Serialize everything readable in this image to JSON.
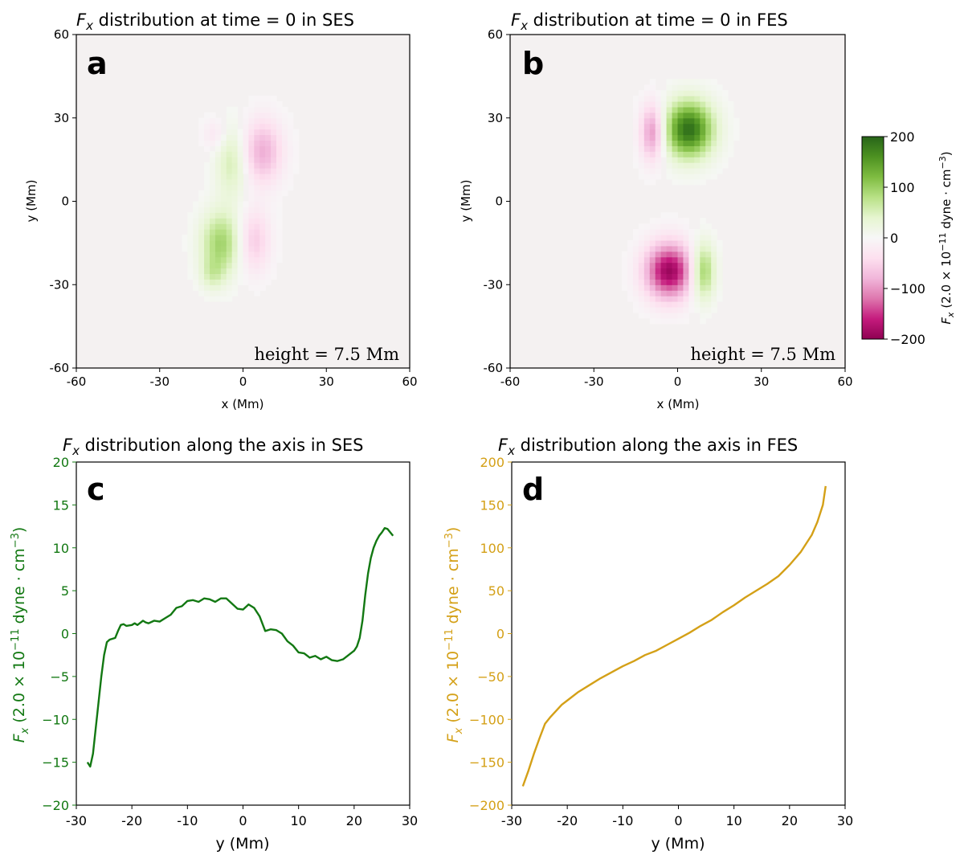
{
  "colors": {
    "green_curve": "#127812",
    "gold_curve": "#d4a017",
    "cmap_neg": "#c51b7d",
    "cmap_mid": "#f7f7f7",
    "cmap_pos": "#276419",
    "bg_field": "#f4f1f1"
  },
  "colorbar": {
    "label": "F_x (2.0 × 10^−11 dyne · cm^−3)",
    "label_math": {
      "F": "F",
      "x": "x",
      "prefix": " (2.0 × 10",
      "exp1": "−11",
      "mid": " dyne · cm",
      "exp2": "−3",
      "suffix": ")"
    },
    "ticks": [
      "200",
      "100",
      "0",
      "−100",
      "−200"
    ],
    "tick_values": [
      200,
      100,
      0,
      -100,
      -200
    ],
    "vmin": -200,
    "vmax": 200
  },
  "chart_data": [
    {
      "panel": "a",
      "type": "heatmap",
      "title_prefix": "F",
      "title_sub": "x",
      "title_rest": " distribution at time = 0 in SES",
      "xlabel": "x (Mm)",
      "ylabel": "y (Mm)",
      "xlim": [
        -60,
        60
      ],
      "ylim": [
        -60,
        60
      ],
      "xticks": [
        "-60",
        "-30",
        "0",
        "30",
        "60"
      ],
      "yticks": [
        "60",
        "30",
        "0",
        "-30",
        "-60"
      ],
      "annotation": "height = 7.5 Mm",
      "blobs": [
        {
          "x": -4,
          "y": 14,
          "sx": 4,
          "sy": 9,
          "value": 55
        },
        {
          "x": 7,
          "y": 18,
          "sx": 5,
          "sy": 8,
          "value": -85
        },
        {
          "x": -10,
          "y": 24,
          "sx": 3,
          "sy": 4,
          "value": -30
        },
        {
          "x": -8,
          "y": -15,
          "sx": 5,
          "sy": 8,
          "value": 95
        },
        {
          "x": 4,
          "y": -14,
          "sx": 4,
          "sy": 8,
          "value": -60
        },
        {
          "x": -11,
          "y": -26,
          "sx": 3,
          "sy": 4,
          "value": 40
        }
      ]
    },
    {
      "panel": "b",
      "type": "heatmap",
      "title_prefix": "F",
      "title_sub": "x",
      "title_rest": " distribution at time = 0 in FES",
      "xlabel": "x (Mm)",
      "ylabel": "y (Mm)",
      "xlim": [
        -60,
        60
      ],
      "ylim": [
        -60,
        60
      ],
      "xticks": [
        "-60",
        "-30",
        "0",
        "30",
        "60"
      ],
      "yticks": [
        "60",
        "30",
        "0",
        "-30",
        "-60"
      ],
      "annotation": "height = 7.5 Mm",
      "blobs": [
        {
          "x": 4,
          "y": 26,
          "sx": 6,
          "sy": 7,
          "value": 190
        },
        {
          "x": -9,
          "y": 25,
          "sx": 3,
          "sy": 7,
          "value": -110
        },
        {
          "x": -3,
          "y": -25,
          "sx": 6,
          "sy": 7,
          "value": -190
        },
        {
          "x": 9,
          "y": -25,
          "sx": 3,
          "sy": 7,
          "value": 110
        }
      ]
    },
    {
      "panel": "c",
      "type": "line",
      "title_prefix": "F",
      "title_sub": "x",
      "title_rest": " distribution along the axis in SES",
      "xlabel": "y (Mm)",
      "ylabel": "F_x (2.0 × 10^−11 dyne · cm^−3)",
      "xlim": [
        -30,
        30
      ],
      "ylim": [
        -20,
        20
      ],
      "xticks": [
        "-30",
        "-20",
        "-10",
        "0",
        "10",
        "20",
        "30"
      ],
      "xtick_values": [
        -30,
        -20,
        -10,
        0,
        10,
        20,
        30
      ],
      "yticks": [
        "20",
        "15",
        "10",
        "5",
        "0",
        "−5",
        "−10",
        "−15",
        "−20"
      ],
      "ytick_values": [
        20,
        15,
        10,
        5,
        0,
        -5,
        -10,
        -15,
        -20
      ],
      "series": [
        {
          "name": "SES",
          "x": [
            -28,
            -27.5,
            -27,
            -26.5,
            -26,
            -25.5,
            -25,
            -24.5,
            -24,
            -23,
            -22.5,
            -22,
            -21.5,
            -21,
            -20,
            -19.5,
            -19,
            -18,
            -17.5,
            -17,
            -16,
            -15,
            -14,
            -13,
            -12,
            -11,
            -10,
            -9,
            -8,
            -7,
            -6,
            -5,
            -4,
            -3,
            -2,
            -1,
            0,
            1,
            2,
            3,
            4,
            5,
            6,
            7,
            8,
            9,
            10,
            11,
            12,
            13,
            14,
            15,
            16,
            17,
            18,
            19,
            20,
            20.5,
            21,
            21.5,
            22,
            22.5,
            23,
            23.5,
            24,
            24.5,
            25,
            25.5,
            26,
            26.5,
            27
          ],
          "y": [
            -15,
            -15.5,
            -14,
            -11,
            -8,
            -5,
            -2.5,
            -1,
            -0.7,
            -0.5,
            0.3,
            1.0,
            1.1,
            0.9,
            1.0,
            1.2,
            1.0,
            1.5,
            1.3,
            1.2,
            1.5,
            1.4,
            1.8,
            2.2,
            3.0,
            3.2,
            3.8,
            3.9,
            3.7,
            4.1,
            4.0,
            3.7,
            4.1,
            4.1,
            3.5,
            2.9,
            2.8,
            3.4,
            3.0,
            2.0,
            0.3,
            0.5,
            0.4,
            0.0,
            -0.9,
            -1.4,
            -2.2,
            -2.3,
            -2.8,
            -2.6,
            -3.0,
            -2.7,
            -3.1,
            -3.2,
            -3.0,
            -2.5,
            -2.0,
            -1.5,
            -0.5,
            1.5,
            4.5,
            7.0,
            8.8,
            10.0,
            10.8,
            11.4,
            11.8,
            12.3,
            12.2,
            11.8,
            11.4
          ]
        }
      ]
    },
    {
      "panel": "d",
      "type": "line",
      "title_prefix": "F",
      "title_sub": "x",
      "title_rest": " distribution along the axis in FES",
      "xlabel": "y (Mm)",
      "ylabel": "F_x (2.0 × 10^−11 dyne · cm^−3)",
      "xlim": [
        -30,
        30
      ],
      "ylim": [
        -200,
        200
      ],
      "xticks": [
        "-30",
        "-20",
        "-10",
        "0",
        "10",
        "20",
        "30"
      ],
      "xtick_values": [
        -30,
        -20,
        -10,
        0,
        10,
        20,
        30
      ],
      "yticks": [
        "200",
        "150",
        "100",
        "50",
        "0",
        "−50",
        "−100",
        "−150",
        "−200"
      ],
      "ytick_values": [
        200,
        150,
        100,
        50,
        0,
        -50,
        -100,
        -150,
        -200
      ],
      "series": [
        {
          "name": "FES",
          "x": [
            -28,
            -27,
            -26,
            -25,
            -24,
            -23,
            -22,
            -21,
            -20,
            -18,
            -16,
            -14,
            -12,
            -10,
            -8,
            -6,
            -4,
            -2,
            0,
            2,
            4,
            6,
            8,
            10,
            12,
            14,
            16,
            18,
            20,
            22,
            24,
            25,
            26,
            26.5
          ],
          "y": [
            -178,
            -160,
            -140,
            -122,
            -105,
            -97,
            -90,
            -83,
            -78,
            -68,
            -60,
            -52,
            -45,
            -38,
            -32,
            -25,
            -20,
            -13,
            -6,
            1,
            9,
            16,
            25,
            33,
            42,
            50,
            58,
            67,
            80,
            95,
            115,
            130,
            150,
            172
          ]
        }
      ]
    }
  ]
}
